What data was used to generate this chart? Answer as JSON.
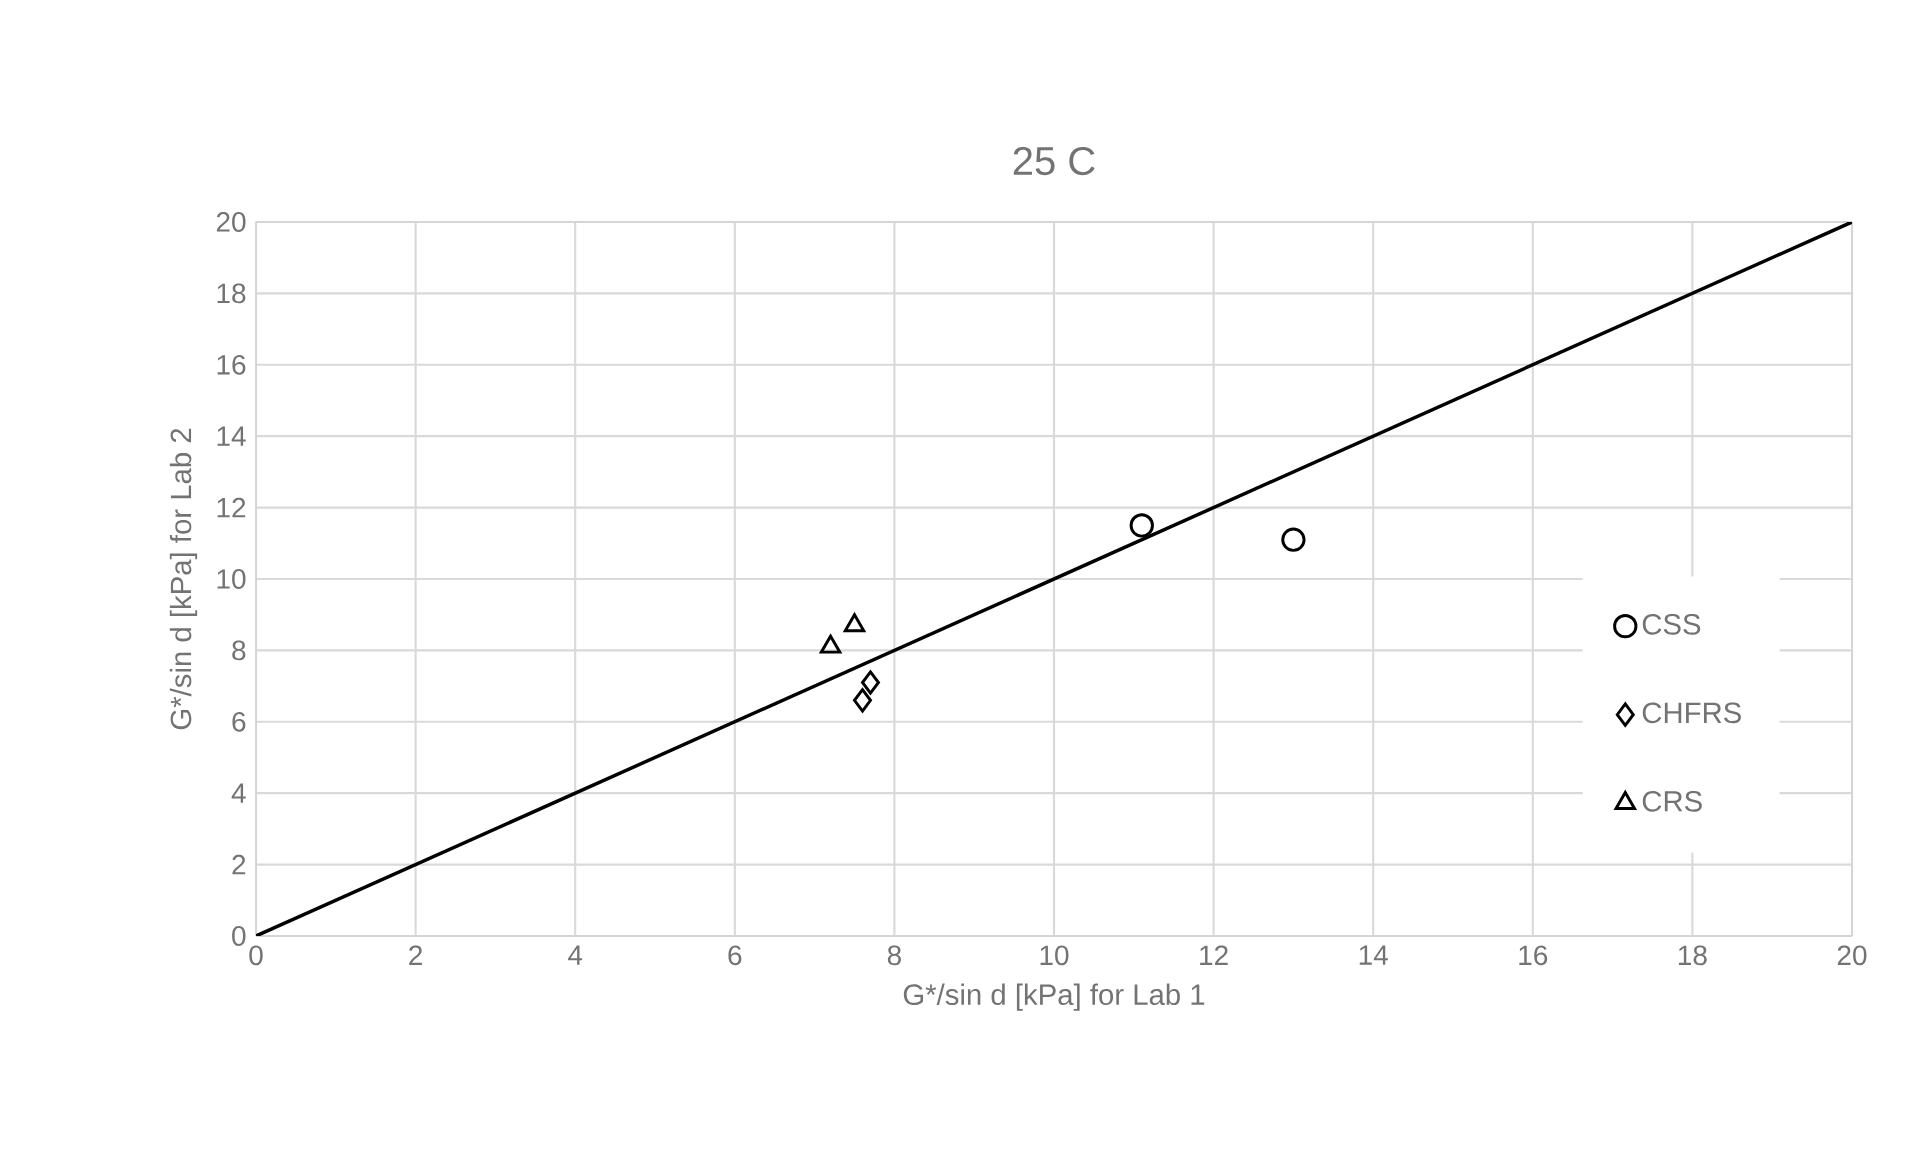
{
  "chart_data": {
    "type": "scatter",
    "title": "25 C",
    "xlabel": "G*/sin d [kPa] for Lab 1",
    "ylabel": "G*/sin d [kPa] for Lab 2",
    "xlim": [
      0,
      20
    ],
    "ylim": [
      0,
      20
    ],
    "xticks": [
      0,
      2,
      4,
      6,
      8,
      10,
      12,
      14,
      16,
      18,
      20
    ],
    "yticks": [
      0,
      2,
      4,
      6,
      8,
      10,
      12,
      14,
      16,
      18,
      20
    ],
    "grid": true,
    "legend": "right",
    "series": [
      {
        "name": "CSS",
        "color": "#000000",
        "marker": "circle",
        "x": [
          11.1,
          13.0
        ],
        "values": [
          11.5,
          11.1
        ]
      },
      {
        "name": "CHFRS",
        "color": "#000000",
        "marker": "diamond",
        "x": [
          7.7,
          7.6
        ],
        "values": [
          7.1,
          6.6
        ]
      },
      {
        "name": "CRS",
        "color": "#000000",
        "marker": "triangle",
        "x": [
          7.2,
          7.5
        ],
        "values": [
          8.1,
          8.7
        ]
      },
      {
        "type": "line",
        "color": "#000000",
        "marker": "none",
        "x": [
          0,
          20
        ],
        "values": [
          0,
          20
        ]
      }
    ]
  }
}
